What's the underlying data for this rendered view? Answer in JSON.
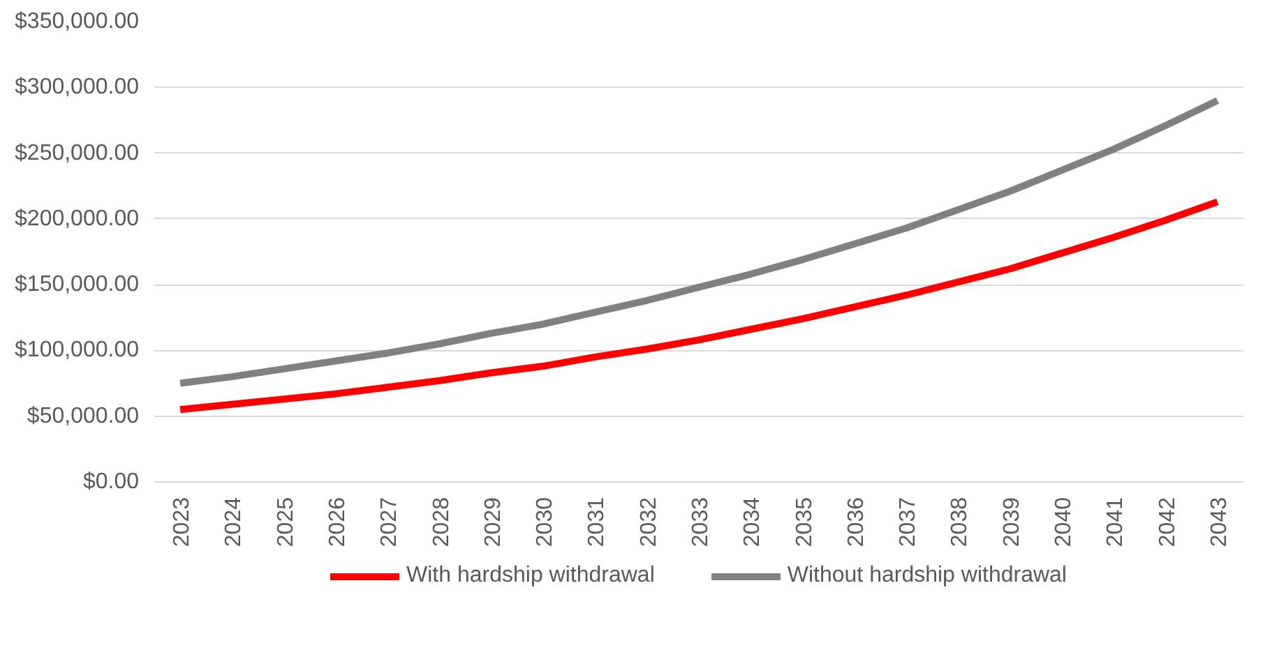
{
  "chart_data": {
    "type": "line",
    "categories": [
      "2023",
      "2024",
      "2025",
      "2026",
      "2027",
      "2028",
      "2029",
      "2030",
      "2031",
      "2032",
      "2033",
      "2034",
      "2035",
      "2036",
      "2037",
      "2038",
      "2039",
      "2040",
      "2041",
      "2042",
      "2043"
    ],
    "series": [
      {
        "name": "With hardship withdrawal",
        "color": "#ff0000",
        "values": [
          55000,
          59000,
          63000,
          67000,
          72000,
          77000,
          83000,
          88000,
          95000,
          101000,
          108000,
          116000,
          124000,
          133000,
          142000,
          152000,
          162000,
          174000,
          186000,
          199000,
          213000
        ]
      },
      {
        "name": "Without hardship withdrawal",
        "color": "#808080",
        "values": [
          75000,
          80000,
          86000,
          92000,
          98000,
          105000,
          113000,
          120000,
          129000,
          138000,
          148000,
          158000,
          169000,
          181000,
          193000,
          207000,
          221000,
          237000,
          253000,
          271000,
          290000
        ]
      }
    ],
    "ylim": [
      0,
      350000
    ],
    "yticks": [
      {
        "value": 0,
        "label": "$0.00"
      },
      {
        "value": 50000,
        "label": "$50,000.00"
      },
      {
        "value": 100000,
        "label": "$100,000.00"
      },
      {
        "value": 150000,
        "label": "$150,000.00"
      },
      {
        "value": 200000,
        "label": "$200,000.00"
      },
      {
        "value": 250000,
        "label": "$250,000.00"
      },
      {
        "value": 300000,
        "label": "$300,000.00"
      },
      {
        "value": 350000,
        "label": "$350,000.00"
      }
    ],
    "grid": "y",
    "legend": "bottom",
    "marker": "none",
    "line_style": "solid"
  }
}
